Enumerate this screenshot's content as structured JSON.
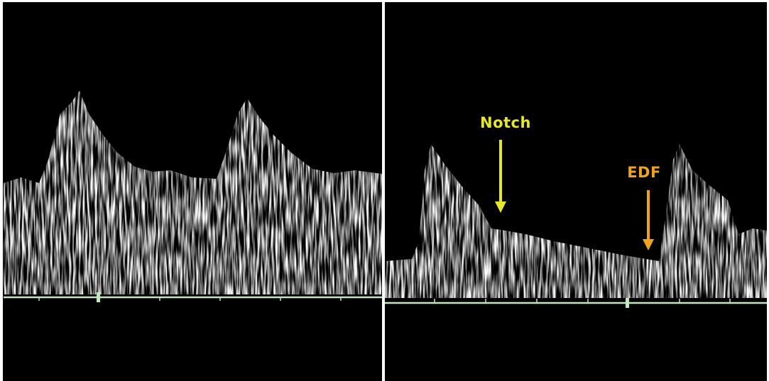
{
  "annotations": [
    {
      "label": "Notch"
    },
    {
      "label": "EDF"
    }
  ]
}
